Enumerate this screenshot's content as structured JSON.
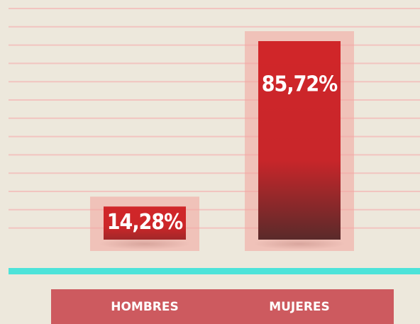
{
  "chart_data": {
    "type": "bar",
    "categories": [
      "HOMBRES",
      "MUJERES"
    ],
    "values": [
      14.28,
      85.72
    ],
    "value_labels": [
      "14,28%",
      "85,72%"
    ],
    "color": "#d0262a"
  }
}
